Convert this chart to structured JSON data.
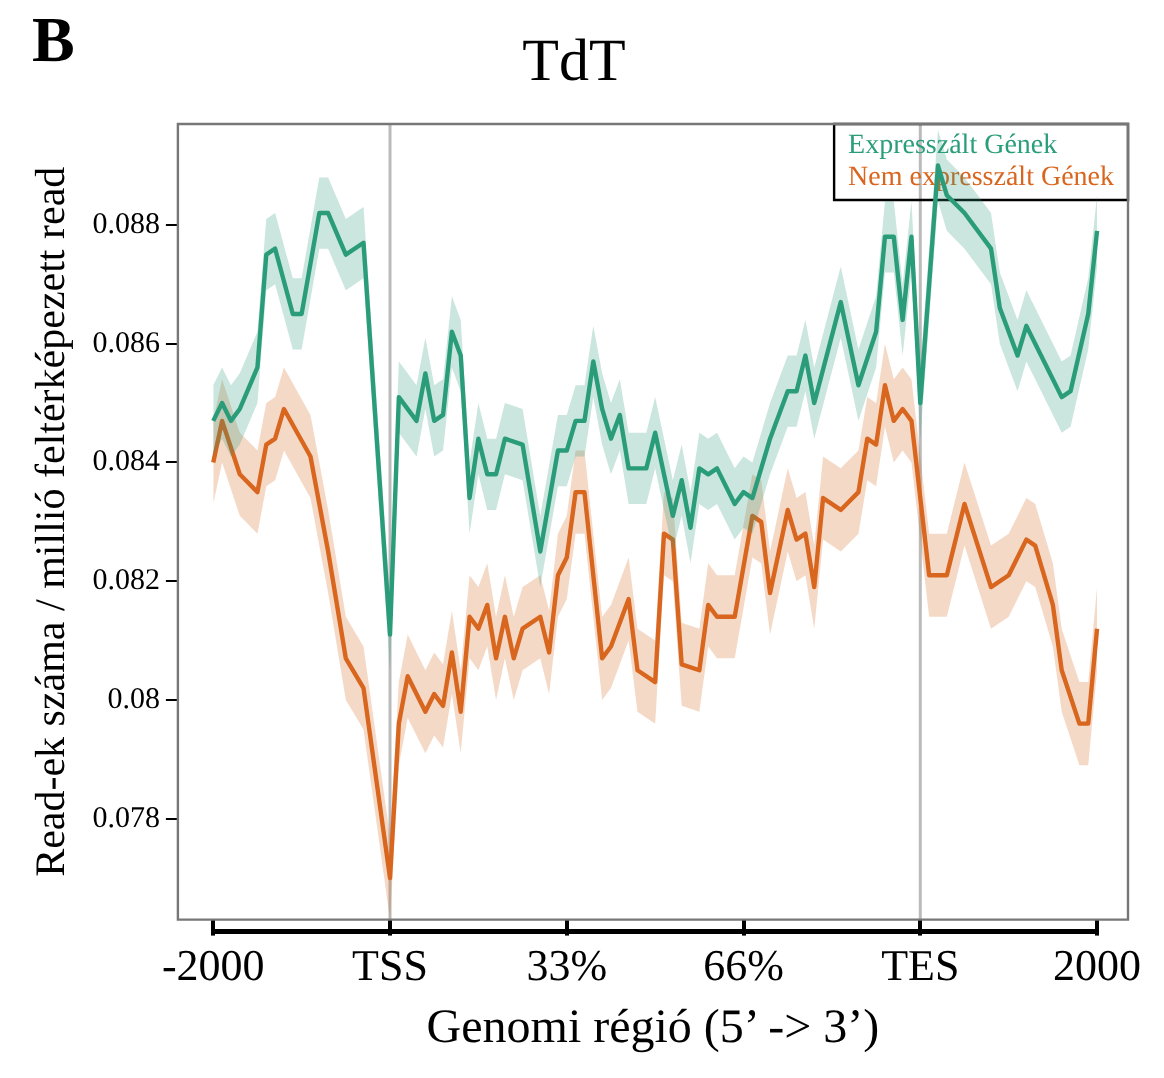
{
  "chart_data": {
    "type": "line",
    "title": "TdT",
    "xlabel": "Genomi régió (5’ -> 3’)",
    "ylabel": "Read-ek száma / millió feltérképezett read",
    "annotations": [
      "B"
    ],
    "categories": [
      "-2000",
      null,
      null,
      null,
      null,
      null,
      null,
      null,
      null,
      null,
      null,
      null,
      null,
      null,
      null,
      null,
      null,
      null,
      null,
      null,
      "TSS",
      null,
      null,
      null,
      null,
      null,
      null,
      null,
      null,
      null,
      null,
      null,
      null,
      null,
      null,
      null,
      null,
      null,
      null,
      null,
      "33%",
      null,
      null,
      null,
      null,
      null,
      null,
      null,
      null,
      null,
      null,
      null,
      null,
      null,
      null,
      null,
      null,
      null,
      null,
      null,
      "66%",
      null,
      null,
      null,
      null,
      null,
      null,
      null,
      null,
      null,
      null,
      null,
      null,
      null,
      null,
      null,
      null,
      null,
      null,
      null,
      "TES",
      null,
      null,
      null,
      null,
      null,
      null,
      null,
      null,
      null,
      null,
      null,
      null,
      null,
      null,
      null,
      null,
      null,
      null,
      null,
      "2000"
    ],
    "ylim": [
      0.0763,
      0.0897
    ],
    "yticks": [
      0.078,
      0.08,
      0.082,
      0.084,
      0.086,
      0.088
    ],
    "grid": false,
    "legend": "top right",
    "marker": "none",
    "line_style": "solid",
    "ref_lines": [
      {
        "axis": "x",
        "value": "TSS",
        "color": "#bbbbbb"
      },
      {
        "axis": "x",
        "value": "TES",
        "color": "#bbbbbb"
      }
    ],
    "series": [
      {
        "name": "Expresszált Gének",
        "color": "#2a9d7a",
        "values": [
          0.0847,
          0.085,
          0.0847,
          0.0849,
          null,
          0.0856,
          0.0875,
          0.0876,
          null,
          0.0865,
          0.0865,
          null,
          0.0882,
          0.0882,
          null,
          0.0875,
          null,
          0.0877,
          null,
          null,
          0.0811,
          0.0851,
          null,
          0.0847,
          0.0855,
          0.0847,
          0.0848,
          0.0862,
          0.0858,
          0.0834,
          0.0844,
          0.0838,
          0.0838,
          0.0844,
          null,
          0.0843,
          null,
          0.0825,
          null,
          0.0842,
          0.0842,
          0.0847,
          0.0847,
          0.0857,
          0.0849,
          0.0844,
          0.0848,
          0.0839,
          null,
          0.0839,
          0.0845,
          null,
          0.0831,
          0.0837,
          0.0829,
          0.0839,
          0.0838,
          0.0839,
          null,
          0.0833,
          0.0835,
          0.0834,
          null,
          0.0844,
          null,
          0.0852,
          0.0852,
          0.0858,
          0.085,
          null,
          null,
          0.0867,
          null,
          0.0853,
          null,
          0.0862,
          0.0878,
          0.0878,
          0.0864,
          0.0878,
          0.085,
          null,
          0.089,
          0.0885,
          null,
          0.0882,
          null,
          null,
          0.0876,
          0.0866,
          null,
          0.0858,
          0.0863,
          null,
          0.0857,
          null,
          0.0851,
          0.0852,
          null,
          0.0865,
          0.0879
        ],
        "lower": [
          0.0841,
          0.0844,
          0.0841,
          0.0843,
          null,
          0.085,
          0.0869,
          0.087,
          null,
          0.0859,
          0.0859,
          null,
          0.0876,
          0.0876,
          null,
          0.0869,
          null,
          0.0871,
          null,
          null,
          0.0805,
          0.0845,
          null,
          0.0841,
          0.0849,
          0.0841,
          0.0842,
          0.0856,
          0.0852,
          0.0828,
          0.0838,
          0.0832,
          0.0832,
          0.0838,
          null,
          0.0837,
          null,
          0.0819,
          null,
          0.0836,
          0.0836,
          0.0841,
          0.0841,
          0.0851,
          0.0843,
          0.0838,
          0.0842,
          0.0833,
          null,
          0.0833,
          0.0839,
          null,
          0.0825,
          0.0831,
          0.0823,
          0.0833,
          0.0832,
          0.0833,
          null,
          0.0827,
          0.0829,
          0.0828,
          null,
          0.0838,
          null,
          0.0846,
          0.0846,
          0.0852,
          0.0844,
          null,
          null,
          0.0861,
          null,
          0.0847,
          null,
          0.0856,
          0.0872,
          0.0872,
          0.0858,
          0.0872,
          0.0844,
          null,
          0.0884,
          0.0879,
          null,
          0.0876,
          null,
          null,
          0.087,
          0.086,
          null,
          0.0852,
          0.0857,
          null,
          0.0851,
          null,
          0.0845,
          0.0846,
          null,
          0.0859,
          0.0873
        ],
        "upper": [
          0.0853,
          0.0856,
          0.0853,
          0.0855,
          null,
          0.0862,
          0.0881,
          0.0882,
          null,
          0.0871,
          0.0871,
          null,
          0.0888,
          0.0888,
          null,
          0.0881,
          null,
          0.0883,
          null,
          null,
          0.0817,
          0.0857,
          null,
          0.0853,
          0.0861,
          0.0853,
          0.0854,
          0.0868,
          0.0864,
          0.084,
          0.085,
          0.0844,
          0.0844,
          0.085,
          null,
          0.0849,
          null,
          0.0831,
          null,
          0.0848,
          0.0848,
          0.0853,
          0.0853,
          0.0863,
          0.0855,
          0.085,
          0.0854,
          0.0845,
          null,
          0.0845,
          0.0851,
          null,
          0.0837,
          0.0843,
          0.0835,
          0.0845,
          0.0844,
          0.0845,
          null,
          0.0839,
          0.0841,
          0.084,
          null,
          0.085,
          null,
          0.0858,
          0.0858,
          0.0864,
          0.0856,
          null,
          null,
          0.0873,
          null,
          0.0859,
          null,
          0.0868,
          0.0884,
          0.0884,
          0.087,
          0.0884,
          0.0856,
          null,
          0.0896,
          0.0891,
          null,
          0.0888,
          null,
          null,
          0.0882,
          0.0872,
          null,
          0.0864,
          0.0869,
          null,
          0.0863,
          null,
          0.0857,
          0.0858,
          null,
          0.0871,
          0.0885
        ]
      },
      {
        "name": "Nem expresszált Gének",
        "color": "#d9661f",
        "values": [
          0.084,
          0.0847,
          null,
          0.0838,
          null,
          0.0835,
          0.0843,
          0.0844,
          0.0849,
          null,
          null,
          0.0841,
          null,
          0.0825,
          null,
          0.0807,
          null,
          0.0802,
          null,
          null,
          0.077,
          0.0796,
          0.0804,
          null,
          0.0798,
          0.0801,
          0.0799,
          0.0808,
          0.0798,
          0.0814,
          0.0812,
          0.0816,
          0.0807,
          0.0814,
          0.0807,
          0.0812,
          null,
          0.0814,
          0.0808,
          0.0821,
          0.0824,
          0.0835,
          0.0835,
          null,
          0.0807,
          0.0809,
          null,
          0.0817,
          0.0805,
          null,
          0.0803,
          0.0828,
          0.0827,
          0.0806,
          null,
          0.0805,
          0.0816,
          0.0814,
          null,
          0.0814,
          null,
          0.0831,
          0.083,
          0.0818,
          null,
          0.0832,
          0.0827,
          0.0828,
          0.0819,
          0.0834,
          null,
          0.0832,
          null,
          0.0835,
          0.0844,
          0.0843,
          0.0853,
          0.0847,
          0.0849,
          0.0847,
          null,
          0.0821,
          null,
          0.0821,
          null,
          0.0833,
          null,
          null,
          0.0819,
          null,
          0.0821,
          null,
          0.0827,
          0.0826,
          null,
          0.0816,
          0.0805,
          null,
          0.0796,
          0.0796,
          0.0812
        ],
        "lower": [
          0.0833,
          0.084,
          null,
          0.0831,
          null,
          0.0828,
          0.0836,
          0.0837,
          0.0842,
          null,
          null,
          0.0834,
          null,
          0.0818,
          null,
          0.08,
          null,
          0.0795,
          null,
          null,
          0.0763,
          0.0789,
          0.0797,
          null,
          0.0791,
          0.0794,
          0.0792,
          0.0801,
          0.0791,
          0.0807,
          0.0805,
          0.0809,
          0.08,
          0.0807,
          0.08,
          0.0805,
          null,
          0.0807,
          0.0801,
          0.0814,
          0.0817,
          0.0828,
          0.0828,
          null,
          0.08,
          0.0802,
          null,
          0.081,
          0.0798,
          null,
          0.0796,
          0.0821,
          0.082,
          0.0799,
          null,
          0.0798,
          0.0809,
          0.0807,
          null,
          0.0807,
          null,
          0.0824,
          0.0823,
          0.0811,
          null,
          0.0825,
          0.082,
          0.0821,
          0.0812,
          0.0827,
          null,
          0.0825,
          null,
          0.0828,
          0.0837,
          0.0836,
          0.0846,
          0.084,
          0.0842,
          0.084,
          null,
          0.0814,
          null,
          0.0814,
          null,
          0.0826,
          null,
          null,
          0.0812,
          null,
          0.0814,
          null,
          0.082,
          0.0819,
          null,
          0.0809,
          0.0798,
          null,
          0.0789,
          0.0789,
          0.0805
        ],
        "upper": [
          0.0847,
          0.0854,
          null,
          0.0845,
          null,
          0.0842,
          0.085,
          0.0851,
          0.0856,
          null,
          null,
          0.0848,
          null,
          0.0832,
          null,
          0.0814,
          null,
          0.0809,
          null,
          null,
          0.0777,
          0.0803,
          0.0811,
          null,
          0.0805,
          0.0808,
          0.0806,
          0.0815,
          0.0805,
          0.0821,
          0.0819,
          0.0823,
          0.0814,
          0.0821,
          0.0814,
          0.0819,
          null,
          0.0821,
          0.0815,
          0.0828,
          0.0831,
          0.0842,
          0.0842,
          null,
          0.0814,
          0.0816,
          null,
          0.0824,
          0.0812,
          null,
          0.081,
          0.0835,
          0.0834,
          0.0813,
          null,
          0.0812,
          0.0823,
          0.0821,
          null,
          0.0821,
          null,
          0.0838,
          0.0837,
          0.0825,
          null,
          0.0839,
          0.0834,
          0.0835,
          0.0826,
          0.0841,
          null,
          0.0839,
          null,
          0.0842,
          0.0851,
          0.085,
          0.086,
          0.0854,
          0.0856,
          0.0854,
          null,
          0.0828,
          null,
          0.0828,
          null,
          0.084,
          null,
          null,
          0.0826,
          null,
          0.0828,
          null,
          0.0834,
          0.0833,
          null,
          0.0823,
          0.0812,
          null,
          0.0803,
          0.0803,
          0.0819
        ]
      }
    ]
  }
}
